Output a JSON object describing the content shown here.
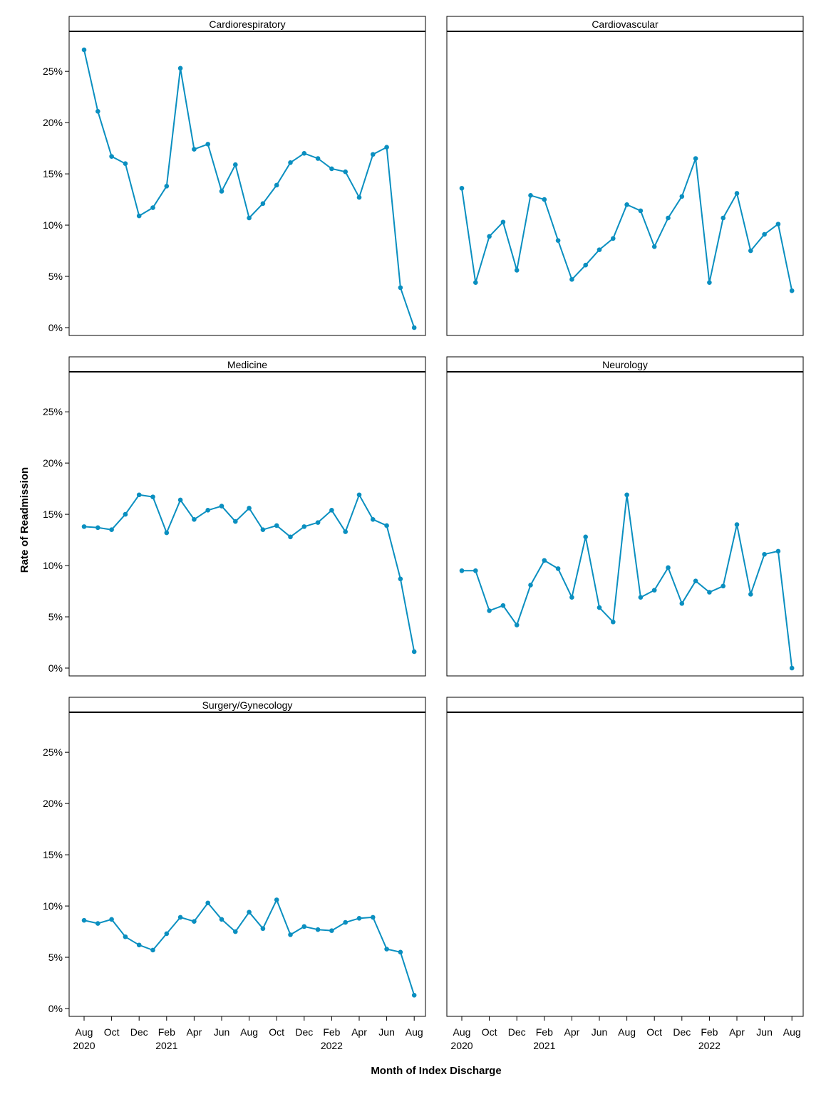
{
  "chart_data": {
    "type": "line",
    "layout": "facet-grid-3x2",
    "xlabel": "Month of Index Discharge",
    "ylabel": "Rate of Readmission",
    "ylim": [
      0,
      28
    ],
    "yticks": [
      0,
      5,
      10,
      15,
      20,
      25
    ],
    "ytick_labels": [
      "0%",
      "5%",
      "10%",
      "15%",
      "20%",
      "25%"
    ],
    "x_index_range": [
      0,
      24
    ],
    "xticks": [
      0,
      2,
      4,
      6,
      8,
      10,
      12,
      14,
      16,
      18,
      20,
      22,
      24
    ],
    "xtick_labels": [
      "Aug",
      "Oct",
      "Dec",
      "Feb",
      "Apr",
      "Jun",
      "Aug",
      "Oct",
      "Dec",
      "Feb",
      "Apr",
      "Jun",
      "Aug"
    ],
    "xtick_year_labels": [
      {
        "tick": 0,
        "label": "2020"
      },
      {
        "tick": 6,
        "label": "2021"
      },
      {
        "tick": 18,
        "label": "2022"
      }
    ],
    "months": [
      "Aug 2020",
      "Sep 2020",
      "Oct 2020",
      "Nov 2020",
      "Dec 2020",
      "Jan 2021",
      "Feb 2021",
      "Mar 2021",
      "Apr 2021",
      "May 2021",
      "Jun 2021",
      "Jul 2021",
      "Aug 2021",
      "Sep 2021",
      "Oct 2021",
      "Nov 2021",
      "Dec 2021",
      "Jan 2022",
      "Feb 2022",
      "Mar 2022",
      "Apr 2022",
      "May 2022",
      "Jun 2022",
      "Jul 2022",
      "Aug 2022"
    ],
    "color": "#0a8fc0",
    "panels": [
      {
        "title": "Cardiorespiratory",
        "values": [
          27.1,
          21.1,
          16.7,
          16.0,
          10.9,
          11.7,
          13.8,
          25.3,
          17.4,
          17.9,
          13.3,
          15.9,
          10.7,
          12.1,
          13.9,
          16.1,
          17.0,
          16.5,
          15.5,
          15.2,
          12.7,
          16.9,
          17.6,
          3.9,
          0.0
        ]
      },
      {
        "title": "Cardiovascular",
        "values": [
          13.6,
          4.4,
          8.9,
          10.3,
          5.6,
          12.9,
          12.5,
          8.5,
          4.7,
          6.1,
          7.6,
          8.7,
          12.0,
          11.4,
          7.9,
          10.7,
          12.8,
          16.5,
          4.4,
          10.7,
          13.1,
          7.5,
          9.1,
          10.1,
          3.6
        ]
      },
      {
        "title": "Medicine",
        "values": [
          13.8,
          13.7,
          13.5,
          15.0,
          16.9,
          16.7,
          13.2,
          16.4,
          14.5,
          15.4,
          15.8,
          14.3,
          15.6,
          13.5,
          13.9,
          12.8,
          13.8,
          14.2,
          15.4,
          13.3,
          16.9,
          14.5,
          13.9,
          8.7,
          1.6
        ]
      },
      {
        "title": "Neurology",
        "values": [
          9.5,
          9.5,
          5.6,
          6.1,
          4.2,
          8.1,
          10.5,
          9.7,
          6.9,
          12.8,
          5.9,
          4.5,
          16.9,
          6.9,
          7.6,
          9.8,
          6.3,
          8.5,
          7.4,
          8.0,
          14.0,
          7.2,
          11.1,
          11.4,
          0.0
        ]
      },
      {
        "title": "Surgery/Gynecology",
        "values": [
          8.6,
          8.3,
          8.7,
          7.0,
          6.2,
          5.7,
          7.3,
          8.9,
          8.5,
          10.3,
          8.7,
          7.5,
          9.4,
          7.8,
          10.6,
          7.2,
          8.0,
          7.7,
          7.6,
          8.4,
          8.8,
          8.9,
          5.8,
          5.5,
          1.3
        ]
      },
      {
        "title": "",
        "values": []
      }
    ]
  }
}
